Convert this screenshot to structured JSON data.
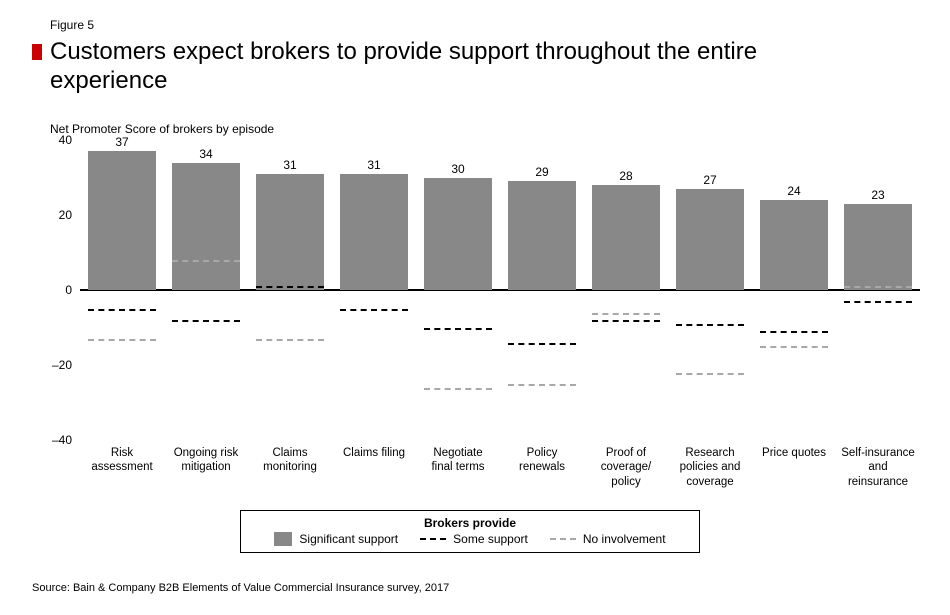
{
  "figure_label": "Figure 5",
  "title": "Customers expect brokers to provide support throughout the entire experience",
  "subtitle": "Net Promoter Score of brokers by episode",
  "source": "Source: Bain & Company B2B Elements of Value Commercial Insurance survey, 2017",
  "chart": {
    "type": "bar",
    "ylim": [
      -40,
      40
    ],
    "yticks": [
      -40,
      -20,
      0,
      20,
      40
    ],
    "zero_line_color": "#000000",
    "bar_color": "#888888",
    "some_support_color": "#000000",
    "no_involvement_color": "#a8a8a8",
    "dash_pattern_some": "7 5",
    "dash_pattern_none": "9 7",
    "categories": [
      {
        "label": "Risk\nassessment",
        "bar": 37,
        "some": -5,
        "none": -13
      },
      {
        "label": "Ongoing risk\nmitigation",
        "bar": 34,
        "some": -8,
        "none": 8
      },
      {
        "label": "Claims\nmonitoring",
        "bar": 31,
        "some": 1,
        "none": -13
      },
      {
        "label": "Claims filing",
        "bar": 31,
        "some": -5,
        "none": null
      },
      {
        "label": "Negotiate\nfinal terms",
        "bar": 30,
        "some": -10,
        "none": -26
      },
      {
        "label": "Policy\nrenewals",
        "bar": 29,
        "some": -14,
        "none": -25
      },
      {
        "label": "Proof of\ncoverage/\npolicy",
        "bar": 28,
        "some": -8,
        "none": -6
      },
      {
        "label": "Research\npolicies and\ncoverage",
        "bar": 27,
        "some": -9,
        "none": -22
      },
      {
        "label": "Price quotes",
        "bar": 24,
        "some": -11,
        "none": -15
      },
      {
        "label": "Self-insurance\nand\nreinsurance",
        "bar": 23,
        "some": -3,
        "none": 1
      }
    ]
  },
  "legend": {
    "title": "Brokers provide",
    "items": [
      {
        "label": "Significant support",
        "type": "bar"
      },
      {
        "label": "Some support",
        "type": "dash_some"
      },
      {
        "label": "No involvement",
        "type": "dash_none"
      }
    ]
  }
}
